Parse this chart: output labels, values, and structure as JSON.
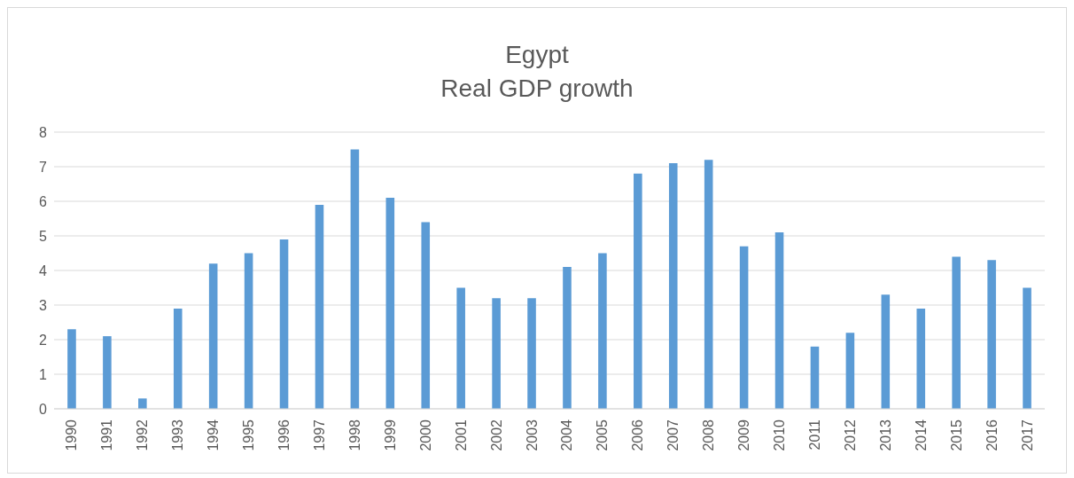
{
  "chart_data": {
    "type": "bar",
    "title": "Egypt",
    "subtitle": "Real GDP growth",
    "categories": [
      "1990",
      "1991",
      "1992",
      "1993",
      "1994",
      "1995",
      "1996",
      "1997",
      "1998",
      "1999",
      "2000",
      "2001",
      "2002",
      "2003",
      "2004",
      "2005",
      "2006",
      "2007",
      "2008",
      "2009",
      "2010",
      "2011",
      "2012",
      "2013",
      "2014",
      "2015",
      "2016",
      "2017"
    ],
    "values": [
      2.3,
      2.1,
      0.3,
      2.9,
      4.2,
      4.5,
      4.9,
      5.9,
      7.5,
      6.1,
      5.4,
      3.5,
      3.2,
      3.2,
      4.1,
      4.5,
      6.8,
      7.1,
      7.2,
      4.7,
      5.1,
      1.8,
      2.2,
      3.3,
      2.9,
      4.4,
      4.3,
      3.5
    ],
    "color": "#5b9bd5",
    "ylim": [
      0,
      8
    ],
    "yticks": [
      0,
      1,
      2,
      3,
      4,
      5,
      6,
      7,
      8
    ],
    "grid": "y",
    "legend": false
  }
}
